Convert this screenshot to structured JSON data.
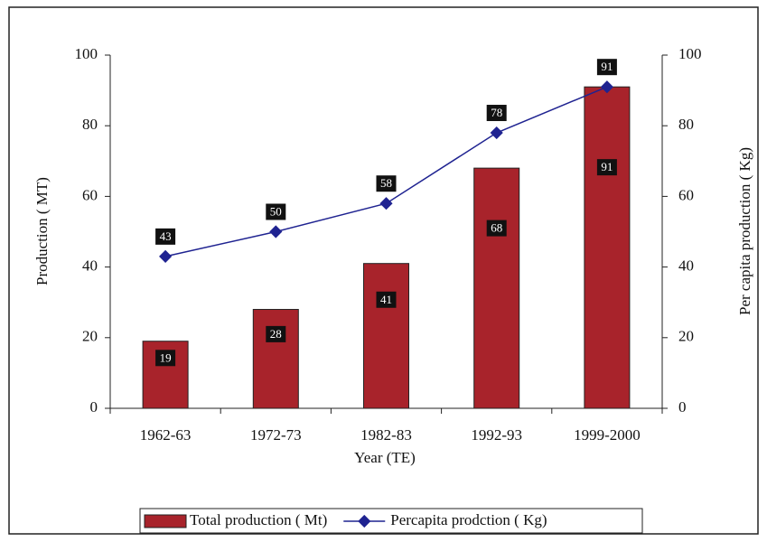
{
  "chart_data": {
    "type": "bar",
    "x_label": "Year (TE)",
    "y_label": "Production ( MT)",
    "y2_label": "Per capita production ( Kg)",
    "categories": [
      "1962-63",
      "1972-73",
      "1982-83",
      "1992-93",
      "1999-2000"
    ],
    "series": [
      {
        "name": "Total production ( Mt)",
        "color": "#a8232b",
        "type": "bar",
        "values": [
          19,
          28,
          41,
          68,
          91
        ]
      },
      {
        "name": "Percapita prodction ( Kg)",
        "color": "#1f2391",
        "type": "line",
        "axis": "y2",
        "values": [
          43,
          50,
          58,
          78,
          91
        ]
      }
    ],
    "ylim": [
      0,
      100
    ],
    "yticks": [
      0,
      20,
      40,
      60,
      80,
      100
    ],
    "y2lim": [
      0,
      100
    ],
    "y2ticks": [
      0,
      20,
      40,
      60,
      80,
      100
    ],
    "legend": "bottom"
  }
}
